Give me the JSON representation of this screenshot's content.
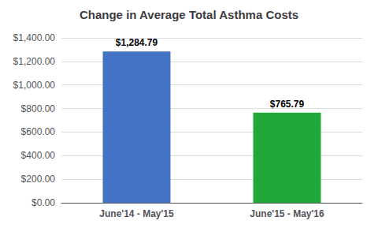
{
  "chart_data": {
    "type": "bar",
    "title": "Change in Average Total Asthma Costs",
    "categories": [
      "June'14 - May'15",
      "June'15 - May'16"
    ],
    "values": [
      1284.79,
      765.79
    ],
    "value_labels": [
      "$1,284.79",
      "$765.79"
    ],
    "colors": [
      "#4472C4",
      "#21A83A"
    ],
    "ylim": [
      0,
      1400
    ],
    "yticks": [
      {
        "value": 0,
        "label": "$0.00"
      },
      {
        "value": 200,
        "label": "$200.00"
      },
      {
        "value": 400,
        "label": "$400.00"
      },
      {
        "value": 600,
        "label": "$600.00"
      },
      {
        "value": 800,
        "label": "$800.00"
      },
      {
        "value": 1000,
        "label": "$1,000.00"
      },
      {
        "value": 1200,
        "label": "$1,200.00"
      },
      {
        "value": 1400,
        "label": "$1,400.00"
      }
    ],
    "grid": true,
    "data_labels": true
  }
}
